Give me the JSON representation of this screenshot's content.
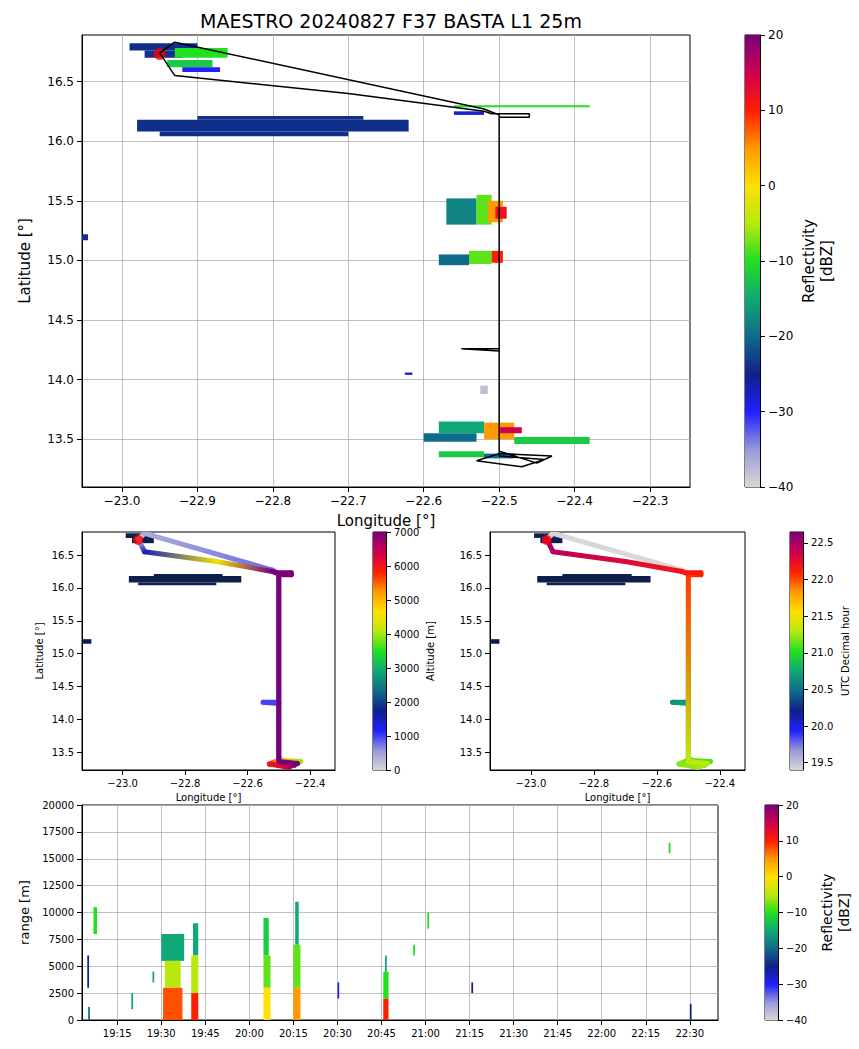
{
  "chart_data": [
    {
      "type": "map",
      "title": "MAESTRO 20240827 F37 BASTA L1 25m",
      "x_label": "Longitude [°]",
      "y_label": "Latitude [°]",
      "xlim": [
        -23.053,
        -22.247
      ],
      "xticks": [
        {
          "value": -23.0,
          "label": "−23.0"
        },
        {
          "value": -22.9,
          "label": "−22.9"
        },
        {
          "value": -22.8,
          "label": "−22.8"
        },
        {
          "value": -22.7,
          "label": "−22.7"
        },
        {
          "value": -22.6,
          "label": "−22.6"
        },
        {
          "value": -22.5,
          "label": "−22.5"
        },
        {
          "value": -22.4,
          "label": "−22.4"
        },
        {
          "value": -22.3,
          "label": "−22.3"
        }
      ],
      "ylim": [
        13.1,
        16.89
      ],
      "yticks": [
        13.5,
        {
          "value": 14,
          "label": "14.0"
        },
        14.5,
        {
          "value": 15,
          "label": "15.0"
        },
        15.5,
        {
          "value": 16,
          "label": "16.0"
        },
        16.5
      ],
      "grid": true,
      "cells": {
        "values": [
          [
            -22.99,
            -22.9,
            16.76,
            16.82,
            -24
          ],
          [
            -22.97,
            -22.92,
            16.7,
            16.76,
            -24
          ],
          [
            -22.93,
            -22.86,
            16.7,
            16.78,
            -10
          ],
          [
            -22.94,
            -22.88,
            16.62,
            16.68,
            -12
          ],
          [
            -22.92,
            -22.87,
            16.58,
            16.62,
            -30
          ],
          [
            -22.98,
            -22.62,
            16.08,
            16.18,
            -24
          ],
          [
            -22.95,
            -22.7,
            16.04,
            16.08,
            -24
          ],
          [
            -22.9,
            -22.68,
            16.18,
            16.21,
            -24
          ],
          [
            -22.56,
            -22.38,
            16.285,
            16.3,
            -10
          ],
          [
            -22.56,
            -22.52,
            16.22,
            16.25,
            -28
          ],
          [
            -22.57,
            -22.53,
            15.3,
            15.52,
            -18
          ],
          [
            -22.53,
            -22.51,
            15.3,
            15.55,
            -8
          ],
          [
            -22.515,
            -22.495,
            15.32,
            15.5,
            5
          ],
          [
            -22.505,
            -22.49,
            15.35,
            15.45,
            12
          ],
          [
            -22.58,
            -22.54,
            14.96,
            15.05,
            -20
          ],
          [
            -22.54,
            -22.51,
            14.97,
            15.08,
            -8
          ],
          [
            -22.51,
            -22.495,
            14.98,
            15.08,
            10
          ],
          [
            -22.525,
            -22.515,
            13.88,
            13.95,
            -38
          ],
          [
            -22.625,
            -22.615,
            14.04,
            14.06,
            -28
          ],
          [
            -22.6,
            -22.53,
            13.48,
            13.55,
            -20
          ],
          [
            -22.58,
            -22.52,
            13.55,
            13.65,
            -15
          ],
          [
            -22.52,
            -22.48,
            13.5,
            13.64,
            5
          ],
          [
            -22.5,
            -22.47,
            13.55,
            13.6,
            15
          ],
          [
            -22.48,
            -22.38,
            13.46,
            13.52,
            -12
          ],
          [
            -22.58,
            -22.52,
            13.35,
            13.4,
            -12
          ],
          [
            -22.52,
            -22.48,
            13.34,
            13.38,
            -20
          ],
          [
            -23.1,
            -23.045,
            15.17,
            15.22,
            -24
          ]
        ]
      },
      "track": {
        "color": "#000000",
        "lon": [
          -22.95,
          -22.93,
          -22.52,
          -22.5,
          -22.5,
          -22.55,
          -22.5,
          -22.5,
          -22.45,
          -22.43,
          -22.5,
          -22.53,
          -22.47,
          -22.44,
          -22.5,
          -22.5,
          -22.46,
          -22.46,
          -22.51,
          -22.52,
          -22.7,
          -22.93,
          -22.95
        ],
        "lat": [
          16.74,
          16.83,
          16.27,
          16.22,
          14.26,
          14.26,
          14.24,
          13.4,
          13.3,
          13.36,
          13.38,
          13.32,
          13.27,
          13.33,
          13.36,
          16.2,
          16.2,
          16.23,
          16.23,
          16.25,
          16.4,
          16.55,
          16.74
        ]
      },
      "points": [
        {
          "lon": -22.95,
          "lat": 16.73,
          "color": "#ff0000",
          "marker": "circle"
        }
      ],
      "colorbar": {
        "label": "Reflectivity [dBZ]",
        "range": [
          -40,
          20
        ],
        "ticks": [
          {
            "value": -40,
            "label": "−40"
          },
          {
            "value": -30,
            "label": "−30"
          },
          {
            "value": -20,
            "label": "−20"
          },
          {
            "value": -10,
            "label": "−10"
          },
          0,
          10,
          20
        ]
      }
    },
    {
      "type": "map",
      "x_label": "Longitude [°]",
      "y_label": "Latitude [°]",
      "xlim": [
        -23.13,
        -22.32
      ],
      "xticks": [
        {
          "value": -23.0,
          "label": "−23.0"
        },
        {
          "value": -22.8,
          "label": "−22.8"
        },
        {
          "value": -22.6,
          "label": "−22.6"
        },
        {
          "value": -22.4,
          "label": "−22.4"
        }
      ],
      "ylim": [
        13.23,
        16.85
      ],
      "yticks": [
        13.5,
        {
          "value": 14,
          "label": "14.0"
        },
        14.5,
        {
          "value": 15,
          "label": "15.0"
        },
        15.5,
        {
          "value": 16,
          "label": "16.0"
        },
        16.5
      ],
      "grid": false,
      "cells": {
        "color": "#0d1f4d",
        "values": [
          [
            -22.99,
            -22.9,
            16.76,
            16.83
          ],
          [
            -22.97,
            -22.9,
            16.68,
            16.76
          ],
          [
            -22.98,
            -22.62,
            16.08,
            16.18
          ],
          [
            -22.95,
            -22.7,
            16.04,
            16.08
          ],
          [
            -22.9,
            -22.68,
            16.18,
            16.21
          ],
          [
            -23.15,
            -23.1,
            15.15,
            15.22
          ]
        ]
      },
      "track": {
        "lon": [
          -22.95,
          -22.93,
          -22.52,
          -22.5,
          -22.5,
          -22.55,
          -22.5,
          -22.5,
          -22.45,
          -22.43,
          -22.5,
          -22.53,
          -22.47,
          -22.44,
          -22.5,
          -22.5,
          -22.46,
          -22.46,
          -22.51,
          -22.52,
          -22.7,
          -22.93,
          -22.95
        ],
        "lat": [
          16.74,
          16.83,
          16.27,
          16.22,
          14.26,
          14.26,
          14.24,
          13.4,
          13.3,
          13.36,
          13.38,
          13.32,
          13.27,
          13.33,
          13.36,
          16.2,
          16.2,
          16.23,
          16.23,
          16.25,
          16.4,
          16.55,
          16.74
        ],
        "values": [
          0,
          400,
          800,
          800,
          1000,
          1000,
          1000,
          1000,
          2500,
          4000,
          5000,
          6000,
          6500,
          7000,
          7000,
          7000,
          7000,
          7000,
          7000,
          7000,
          4500,
          1500,
          0
        ]
      },
      "points": [
        {
          "lon": -22.95,
          "lat": 16.73,
          "color": "#ff0000",
          "marker": "circle"
        }
      ],
      "colorbar": {
        "label": "Altitude [m]",
        "range": [
          0,
          7000
        ],
        "ticks": [
          0,
          1000,
          2000,
          3000,
          4000,
          5000,
          6000,
          7000
        ]
      }
    },
    {
      "type": "map",
      "x_label": "Longitude [°]",
      "xlim": [
        -23.13,
        -22.32
      ],
      "xticks": [
        {
          "value": -23.0,
          "label": "−23.0"
        },
        {
          "value": -22.8,
          "label": "−22.8"
        },
        {
          "value": -22.6,
          "label": "−22.6"
        },
        {
          "value": -22.4,
          "label": "−22.4"
        }
      ],
      "ylim": [
        13.23,
        16.85
      ],
      "yticks": [
        13.5,
        {
          "value": 14,
          "label": "14.0"
        },
        14.5,
        {
          "value": 15,
          "label": "15.0"
        },
        15.5,
        {
          "value": 16,
          "label": "16.0"
        },
        16.5
      ],
      "grid": false,
      "cells": {
        "color": "#0d1f4d",
        "values": [
          [
            -22.99,
            -22.9,
            16.76,
            16.83
          ],
          [
            -22.97,
            -22.9,
            16.68,
            16.76
          ],
          [
            -22.98,
            -22.62,
            16.08,
            16.18
          ],
          [
            -22.95,
            -22.7,
            16.04,
            16.08
          ],
          [
            -22.9,
            -22.68,
            16.18,
            16.21
          ],
          [
            -23.15,
            -23.1,
            15.15,
            15.22
          ]
        ]
      },
      "track": {
        "lon": [
          -22.95,
          -22.93,
          -22.52,
          -22.5,
          -22.5,
          -22.55,
          -22.5,
          -22.5,
          -22.45,
          -22.43,
          -22.5,
          -22.53,
          -22.47,
          -22.44,
          -22.5,
          -22.5,
          -22.46,
          -22.46,
          -22.51,
          -22.52,
          -22.7,
          -22.93,
          -22.95
        ],
        "lat": [
          16.74,
          16.83,
          16.27,
          16.22,
          14.26,
          14.26,
          14.24,
          13.4,
          13.3,
          13.36,
          13.38,
          13.32,
          13.27,
          13.33,
          13.36,
          16.2,
          16.2,
          16.23,
          16.23,
          16.25,
          16.4,
          16.55,
          16.74
        ],
        "values": [
          19.05,
          19.1,
          19.3,
          19.33,
          20.55,
          20.65,
          20.75,
          20.95,
          21.05,
          21.1,
          21.15,
          21.2,
          21.25,
          21.3,
          21.35,
          22.05,
          22.1,
          22.13,
          22.16,
          22.18,
          22.3,
          22.45,
          22.58
        ]
      },
      "points": [
        {
          "lon": -22.95,
          "lat": 16.73,
          "color": "#ff0000",
          "marker": "circle"
        }
      ],
      "colorbar": {
        "label": "UTC Decimal hour",
        "range": [
          19.4,
          22.65
        ],
        "ticks": [
          19.5,
          {
            "value": 20,
            "label": "20.0"
          },
          20.5,
          {
            "value": 21,
            "label": "21.0"
          },
          21.5,
          {
            "value": 22,
            "label": "22.0"
          },
          22.5
        ]
      }
    },
    {
      "type": "heatmap",
      "y_label": "range [m]",
      "xlim": [
        19.05,
        22.66
      ],
      "xticks": [
        {
          "value": 19.25,
          "label": "19:15"
        },
        {
          "value": 19.5,
          "label": "19:30"
        },
        {
          "value": 19.75,
          "label": "19:45"
        },
        {
          "value": 20,
          "label": "20:00"
        },
        {
          "value": 20.25,
          "label": "20:15"
        },
        {
          "value": 20.5,
          "label": "20:30"
        },
        {
          "value": 20.75,
          "label": "20:45"
        },
        {
          "value": 21,
          "label": "21:00"
        },
        {
          "value": 21.25,
          "label": "21:15"
        },
        {
          "value": 21.5,
          "label": "21:30"
        },
        {
          "value": 21.75,
          "label": "21:45"
        },
        {
          "value": 22,
          "label": "22:00"
        },
        {
          "value": 22.25,
          "label": "22:15"
        },
        {
          "value": 22.5,
          "label": "22:30"
        }
      ],
      "ylim": [
        0,
        20000
      ],
      "yticks": [
        0,
        2500,
        5000,
        7500,
        10000,
        12500,
        15000,
        17500,
        20000
      ],
      "grid": true,
      "cells": {
        "values": [
          [
            19.08,
            19.09,
            3000,
            6000,
            -25
          ],
          [
            19.085,
            19.095,
            0,
            1200,
            -20
          ],
          [
            19.115,
            19.135,
            8000,
            10500,
            -10
          ],
          [
            19.33,
            19.34,
            1000,
            2500,
            -15
          ],
          [
            19.45,
            19.46,
            3500,
            4500,
            -15
          ],
          [
            19.5,
            19.63,
            5500,
            8000,
            -15
          ],
          [
            19.52,
            19.61,
            3000,
            5500,
            -5
          ],
          [
            19.51,
            19.62,
            0,
            3000,
            8
          ],
          [
            19.68,
            19.71,
            6000,
            9000,
            -15
          ],
          [
            19.67,
            19.71,
            2500,
            6000,
            -5
          ],
          [
            19.67,
            19.71,
            0,
            2500,
            10
          ],
          [
            20.08,
            20.11,
            6000,
            9500,
            -12
          ],
          [
            20.08,
            20.12,
            3000,
            6000,
            -8
          ],
          [
            20.08,
            20.12,
            0,
            3000,
            0
          ],
          [
            20.26,
            20.28,
            7000,
            11000,
            -15
          ],
          [
            20.25,
            20.29,
            3000,
            7000,
            -8
          ],
          [
            20.25,
            20.29,
            0,
            3000,
            5
          ],
          [
            20.5,
            20.51,
            2000,
            3500,
            -30
          ],
          [
            20.77,
            20.78,
            4500,
            6000,
            -15
          ],
          [
            20.76,
            20.79,
            2000,
            4500,
            -10
          ],
          [
            20.76,
            20.79,
            0,
            2000,
            10
          ],
          [
            20.93,
            20.94,
            6000,
            7000,
            -10
          ],
          [
            21.01,
            21.02,
            8500,
            10000,
            -10
          ],
          [
            21.26,
            21.27,
            2500,
            3500,
            -25
          ],
          [
            22.38,
            22.39,
            15500,
            16500,
            -10
          ],
          [
            22.5,
            22.51,
            0,
            1500,
            -25
          ]
        ]
      },
      "colorbar": {
        "label": "Reflectivity [dBZ]",
        "range": [
          -40,
          20
        ],
        "ticks": [
          {
            "value": -40,
            "label": "−40"
          },
          {
            "value": -30,
            "label": "−30"
          },
          {
            "value": -20,
            "label": "−20"
          },
          {
            "value": -10,
            "label": "−10"
          },
          0,
          10,
          20
        ]
      }
    }
  ]
}
